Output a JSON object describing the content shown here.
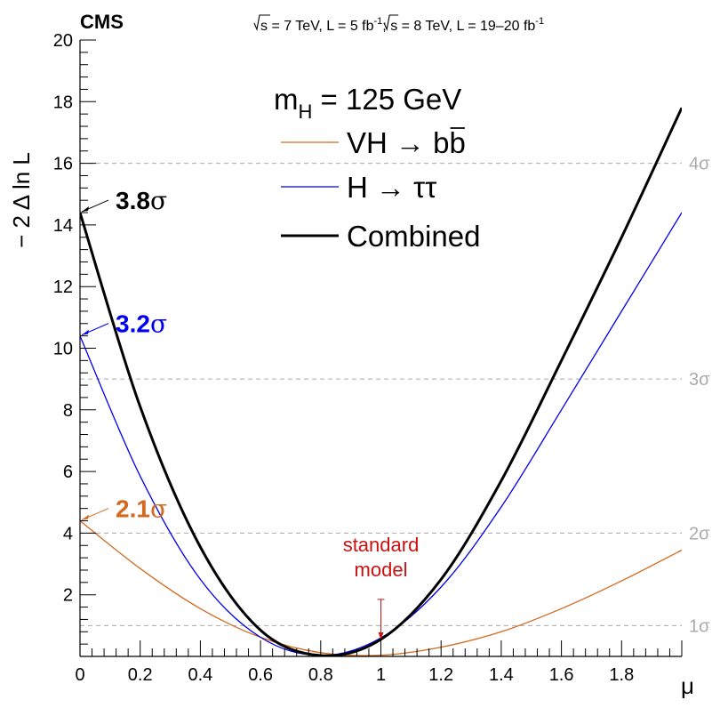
{
  "chart_data": {
    "type": "line",
    "experiment": "CMS",
    "energy": {
      "sqrt1": "s",
      "part1": " = 7 TeV, L = 5 fb",
      "sup1": "-1",
      "sep": "; ",
      "sqrt2": "s",
      "part2": " = 8 TeV, L = 19–20 fb",
      "sup2": "-1"
    },
    "xlabel": "μ",
    "ylabel": "− 2 Δ ln L",
    "xlim": [
      0,
      2.0
    ],
    "ylim": [
      0,
      20
    ],
    "x_ticks": [
      {
        "value": 0,
        "label": "0"
      },
      {
        "value": 0.2,
        "label": "0.2"
      },
      {
        "value": 0.4,
        "label": "0.4"
      },
      {
        "value": 0.6,
        "label": "0.6"
      },
      {
        "value": 0.8,
        "label": "0.8"
      },
      {
        "value": 1.0,
        "label": "1"
      },
      {
        "value": 1.2,
        "label": "1.2"
      },
      {
        "value": 1.4,
        "label": "1.4"
      },
      {
        "value": 1.6,
        "label": "1.6"
      },
      {
        "value": 1.8,
        "label": "1.8"
      }
    ],
    "y_ticks": [
      {
        "value": 2,
        "label": "2"
      },
      {
        "value": 4,
        "label": "4"
      },
      {
        "value": 6,
        "label": "6"
      },
      {
        "value": 8,
        "label": "8"
      },
      {
        "value": 10,
        "label": "10"
      },
      {
        "value": 12,
        "label": "12"
      },
      {
        "value": 14,
        "label": "14"
      },
      {
        "value": 16,
        "label": "16"
      },
      {
        "value": 18,
        "label": "18"
      },
      {
        "value": 20,
        "label": "20"
      }
    ],
    "sigma_lines": [
      {
        "value": 1,
        "label": "1σ"
      },
      {
        "value": 4,
        "label": "2σ"
      },
      {
        "value": 9,
        "label": "3σ"
      },
      {
        "value": 16,
        "label": "4σ"
      }
    ],
    "legend": {
      "title_main": "m",
      "title_sub": "H",
      "title_rest": " = 125 GeV"
    },
    "series": [
      {
        "name": "VH → bb",
        "label_prefix": "VH → b",
        "label_bar": "b",
        "color": "#d2691e",
        "stroke_width": 1.3,
        "x": [
          0,
          0.2,
          0.4,
          0.6,
          0.8,
          1.0,
          1.2,
          1.4,
          1.6,
          1.8,
          2.0
        ],
        "y": [
          4.4,
          2.85,
          1.55,
          0.62,
          0.12,
          0.04,
          0.3,
          0.8,
          1.55,
          2.45,
          3.45
        ]
      },
      {
        "name": "H → ττ",
        "label_prefix": "H → ττ",
        "label_bar": "",
        "color": "#0000ee",
        "stroke_width": 1.3,
        "x": [
          0,
          0.2,
          0.4,
          0.6,
          0.8,
          1.0,
          1.2,
          1.4,
          1.6,
          1.8,
          2.0
        ],
        "y": [
          10.4,
          5.85,
          2.5,
          0.62,
          0.03,
          0.6,
          2.25,
          4.85,
          8.0,
          11.2,
          14.4
        ]
      },
      {
        "name": "Combined",
        "label_prefix": "Combined",
        "label_bar": "",
        "color": "#000000",
        "stroke_width": 3,
        "x": [
          0,
          0.2,
          0.4,
          0.6,
          0.8,
          1.0,
          1.2,
          1.4,
          1.6,
          1.8,
          2.0
        ],
        "y": [
          14.4,
          8.1,
          3.55,
          0.85,
          0.03,
          0.55,
          2.5,
          5.7,
          9.6,
          13.6,
          17.8
        ]
      }
    ],
    "annotations": [
      {
        "number": "3.8",
        "sigma": "σ",
        "color": "#000000",
        "at_y": 14.4
      },
      {
        "number": "3.2",
        "sigma": "σ",
        "color": "#0000ee",
        "at_y": 10.4
      },
      {
        "number": "2.1",
        "sigma": "σ",
        "color": "#d2691e",
        "at_y": 4.4
      }
    ],
    "sm_marker": {
      "line1": "standard",
      "line2": "model",
      "x": 1.0,
      "y_from": 1.85,
      "y_to": 0.55,
      "color": "#cc1111"
    }
  }
}
